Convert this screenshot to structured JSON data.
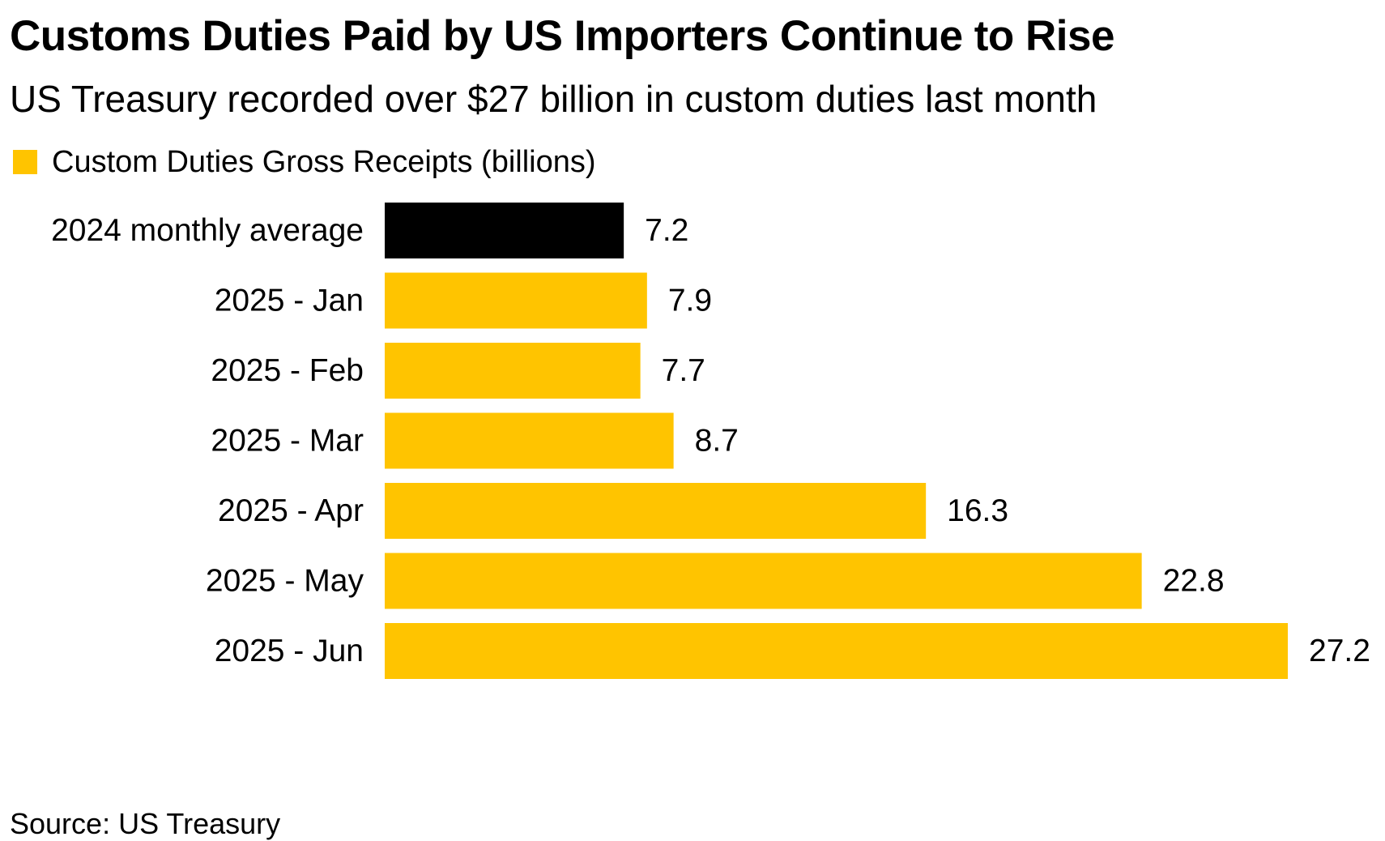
{
  "title": "Customs Duties Paid by US Importers Continue to Rise",
  "subtitle": "US Treasury recorded over $27 billion in custom duties last month",
  "source": "Source: US Treasury",
  "colors": {
    "highlight": "#FFC400",
    "baseline": "#000000"
  },
  "chart_data": {
    "type": "bar",
    "orientation": "horizontal",
    "legend": {
      "position": "top-left",
      "entries": [
        {
          "label": "Custom Duties Gross Receipts (billions)",
          "color": "#FFC400"
        }
      ]
    },
    "grid": false,
    "xlim": [
      0,
      27.2
    ],
    "categories": [
      "2024 monthly average",
      "2025 - Jan",
      "2025 - Feb",
      "2025 - Mar",
      "2025 - Apr",
      "2025 - May",
      "2025 - Jun"
    ],
    "values": [
      7.2,
      7.9,
      7.7,
      8.7,
      16.3,
      22.8,
      27.2
    ],
    "value_labels": [
      "7.2",
      "7.9",
      "7.7",
      "8.7",
      "16.3",
      "22.8",
      "27.2"
    ],
    "bar_colors": [
      "#000000",
      "#FFC400",
      "#FFC400",
      "#FFC400",
      "#FFC400",
      "#FFC400",
      "#FFC400"
    ]
  }
}
